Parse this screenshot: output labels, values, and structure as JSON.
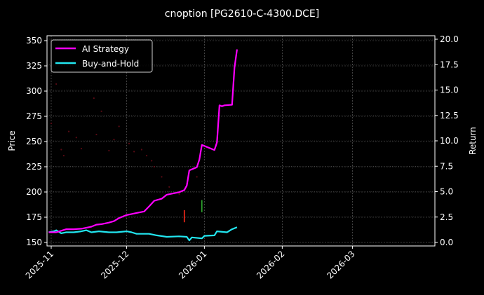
{
  "chart_data": {
    "type": "line",
    "title": "cnoption [PG2610-C-4300.DCE]",
    "xlabel": "",
    "ylabel": "Price",
    "ylabel_right": "Return",
    "ylim": [
      147,
      352
    ],
    "ylim_right": [
      -0.4,
      20.4
    ],
    "x_tick_labels": [
      "2025-11",
      "2025-12",
      "2026-01",
      "2026-02",
      "2026-03"
    ],
    "y_tick_labels": [
      "150",
      "175",
      "200",
      "225",
      "250",
      "275",
      "300",
      "325",
      "350"
    ],
    "y_right_tick_labels": [
      "0.0",
      "2.5",
      "5.0",
      "7.5",
      "10.0",
      "12.5",
      "15.0",
      "17.5",
      "20.0"
    ],
    "grid": true,
    "legend_position": "upper left",
    "legend": [
      "AI Strategy",
      "Buy-and-Hold"
    ],
    "colors": {
      "background": "#000000",
      "ai_strategy": "#ff00ff",
      "buy_and_hold": "#22e6f0",
      "grid": "#6a6a6a",
      "price_dots": "#5a0a14",
      "down_candle": "#ff2a1a",
      "up_candle": "#2ea82e"
    },
    "series": [
      {
        "name": "AI Strategy",
        "axis": "right",
        "x": [
          "2025-10-31",
          "2025-11-03",
          "2025-11-05",
          "2025-11-07",
          "2025-11-10",
          "2025-11-13",
          "2025-11-17",
          "2025-11-19",
          "2025-11-21",
          "2025-11-24",
          "2025-11-26",
          "2025-11-28",
          "2025-12-01",
          "2025-12-03",
          "2025-12-05",
          "2025-12-08",
          "2025-12-10",
          "2025-12-12",
          "2025-12-15",
          "2025-12-17",
          "2025-12-19",
          "2025-12-22",
          "2025-12-24",
          "2025-12-25",
          "2025-12-26",
          "2025-12-29",
          "2025-12-30",
          "2025-12-31",
          "2026-01-01",
          "2026-01-05",
          "2026-01-06",
          "2026-01-07",
          "2026-01-08",
          "2026-01-09",
          "2026-01-12",
          "2026-01-13",
          "2026-01-14"
        ],
        "values": [
          1.0,
          1.0,
          1.15,
          1.3,
          1.3,
          1.35,
          1.55,
          1.75,
          1.8,
          1.95,
          2.1,
          2.4,
          2.7,
          2.8,
          2.9,
          3.05,
          3.55,
          4.1,
          4.3,
          4.7,
          4.8,
          4.95,
          5.15,
          5.6,
          7.1,
          7.4,
          8.15,
          9.6,
          9.5,
          9.1,
          9.85,
          13.5,
          13.4,
          13.5,
          13.55,
          17.2,
          19.0
        ]
      },
      {
        "name": "Buy-and-Hold",
        "axis": "right",
        "x": [
          "2025-10-31",
          "2025-11-02",
          "2025-11-03",
          "2025-11-05",
          "2025-11-07",
          "2025-11-10",
          "2025-11-13",
          "2025-11-15",
          "2025-11-17",
          "2025-11-20",
          "2025-11-24",
          "2025-11-27",
          "2025-12-01",
          "2025-12-03",
          "2025-12-05",
          "2025-12-10",
          "2025-12-13",
          "2025-12-17",
          "2025-12-22",
          "2025-12-25",
          "2025-12-26",
          "2025-12-27",
          "2025-12-31",
          "2026-01-01",
          "2026-01-05",
          "2026-01-06",
          "2026-01-10",
          "2026-01-12",
          "2026-01-14"
        ],
        "values": [
          1.0,
          1.1,
          1.2,
          0.9,
          1.0,
          1.0,
          1.1,
          1.2,
          1.0,
          1.1,
          1.0,
          1.0,
          1.1,
          1.0,
          0.85,
          0.85,
          0.7,
          0.55,
          0.6,
          0.55,
          0.2,
          0.5,
          0.4,
          0.65,
          0.7,
          1.1,
          1.0,
          1.3,
          1.5
        ]
      },
      {
        "name": "Price (faint dots)",
        "axis": "left",
        "type": "scatter",
        "x": [
          "2025-11-01",
          "2025-11-03",
          "2025-11-05",
          "2025-11-06",
          "2025-11-08",
          "2025-11-11",
          "2025-11-13",
          "2025-11-18",
          "2025-11-19",
          "2025-11-21",
          "2025-11-24",
          "2025-11-26",
          "2025-11-28",
          "2025-12-02",
          "2025-12-04",
          "2025-12-07",
          "2025-12-09",
          "2025-12-11",
          "2025-12-12",
          "2025-12-15",
          "2025-12-18",
          "2025-12-22",
          "2025-12-29"
        ],
        "values": [
          268,
          307,
          242,
          236,
          260,
          254,
          243,
          293,
          257,
          280,
          241,
          252,
          265,
          248,
          240,
          242,
          236,
          231,
          225,
          215,
          205,
          198,
          215
        ]
      },
      {
        "name": "Candles",
        "axis": "left",
        "type": "candlestick-marks",
        "items": [
          {
            "x": "2025-12-24",
            "low": 170,
            "high": 182,
            "color": "down"
          },
          {
            "x": "2025-12-31",
            "low": 180,
            "high": 192,
            "color": "up"
          }
        ]
      }
    ]
  }
}
